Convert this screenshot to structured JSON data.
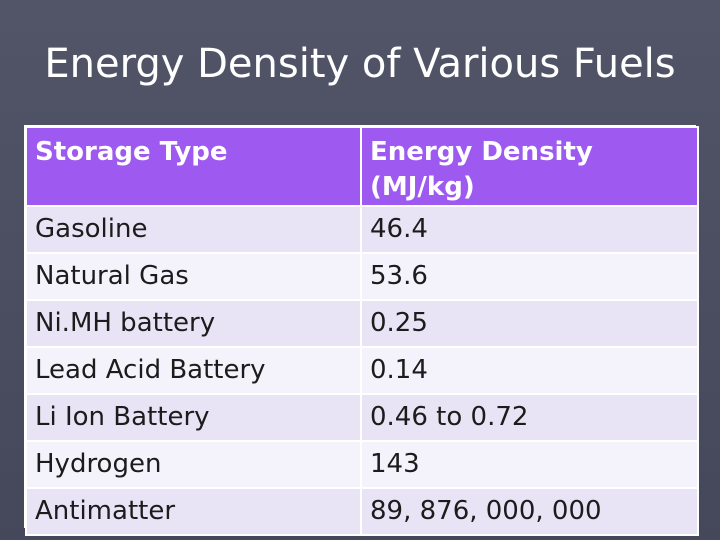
{
  "slide": {
    "title": "Energy Density of Various Fuels"
  },
  "table": {
    "headers": [
      "Storage Type",
      "Energy Density (MJ/kg)"
    ],
    "rows": [
      [
        "Gasoline",
        "46.4"
      ],
      [
        "Natural Gas",
        "53.6"
      ],
      [
        "Ni.MH battery",
        "0.25"
      ],
      [
        "Lead Acid Battery",
        "0.14"
      ],
      [
        "Li Ion Battery",
        "0.46 to 0.72"
      ],
      [
        "Hydrogen",
        "143"
      ],
      [
        "Antimatter",
        "89, 876, 000, 000"
      ]
    ]
  },
  "colors": {
    "background": "#4b4d61",
    "header_fill": "#9e59f0",
    "row_fill_a": "#e9e4f5",
    "row_fill_b": "#f4f2fa"
  }
}
